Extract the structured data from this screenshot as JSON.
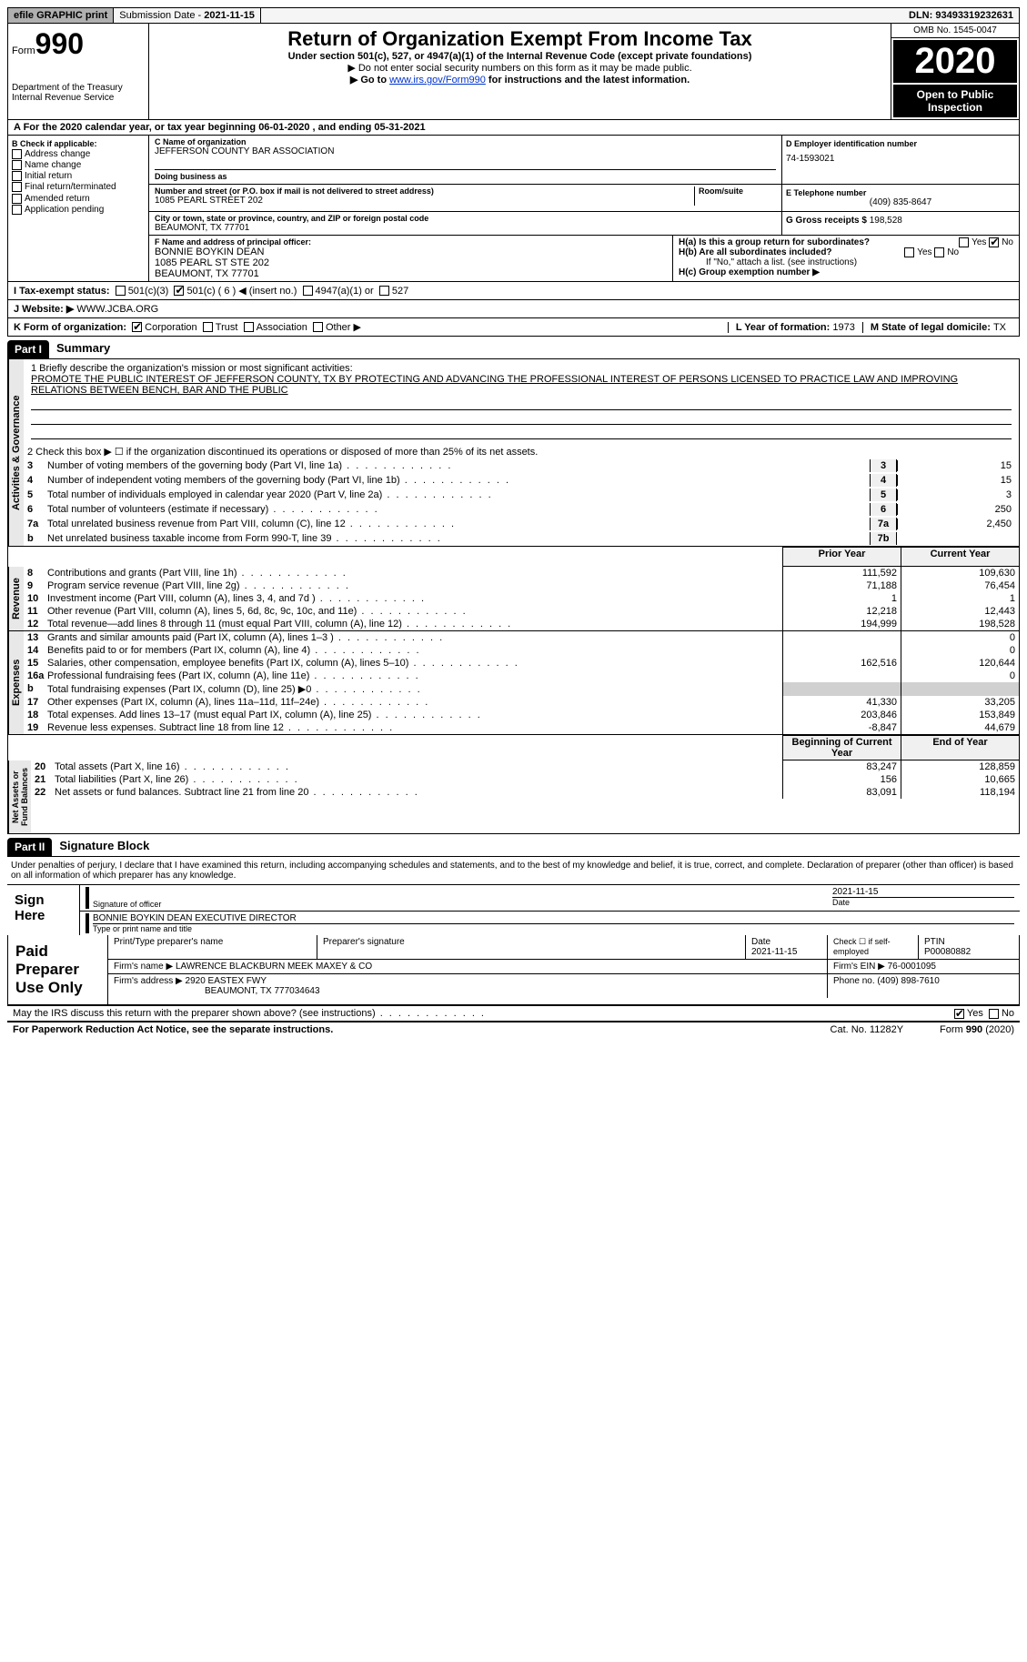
{
  "top_bar": {
    "efile": "efile GRAPHIC print",
    "submission_label": "Submission Date - ",
    "submission_date": "2021-11-15",
    "dln_label": "DLN: ",
    "dln": "93493319232631"
  },
  "header": {
    "form_word": "Form",
    "form_num": "990",
    "dept": "Department of the Treasury\nInternal Revenue Service",
    "title": "Return of Organization Exempt From Income Tax",
    "subtitle": "Under section 501(c), 527, or 4947(a)(1) of the Internal Revenue Code (except private foundations)",
    "ssn_note": "▶ Do not enter social security numbers on this form as it may be made public.",
    "goto_prefix": "▶ Go to ",
    "goto_link": "www.irs.gov/Form990",
    "goto_suffix": " for instructions and the latest information.",
    "omb": "OMB No. 1545-0047",
    "year": "2020",
    "open_public": "Open to Public\nInspection"
  },
  "tax_year_row": "A For the 2020 calendar year, or tax year beginning 06-01-2020    , and ending 05-31-2021",
  "section_b": {
    "heading": "B Check if applicable:",
    "items": [
      "Address change",
      "Name change",
      "Initial return",
      "Final return/terminated",
      "Amended return",
      "Application pending"
    ]
  },
  "section_c": {
    "name_label": "C Name of organization",
    "name": "JEFFERSON COUNTY BAR ASSOCIATION",
    "dba_label": "Doing business as",
    "dba": "",
    "addr_label": "Number and street (or P.O. box if mail is not delivered to street address)",
    "room_label": "Room/suite",
    "addr": "1085 PEARL STREET 202",
    "city_label": "City or town, state or province, country, and ZIP or foreign postal code",
    "city": "BEAUMONT, TX  77701"
  },
  "section_d": {
    "label": "D Employer identification number",
    "value": "74-1593021"
  },
  "section_e": {
    "label": "E Telephone number",
    "value": "(409) 835-8647"
  },
  "section_g": {
    "label": "G Gross receipts $ ",
    "value": "198,528"
  },
  "section_f": {
    "label": "F  Name and address of principal officer:",
    "name": "BONNIE BOYKIN DEAN",
    "addr1": "1085 PEARL ST STE 202",
    "addr2": "BEAUMONT, TX  77701"
  },
  "section_h": {
    "ha": "H(a)  Is this a group return for subordinates?",
    "ha_yes": false,
    "ha_no": true,
    "hb": "H(b)  Are all subordinates included?",
    "hb_yes": false,
    "hb_no": false,
    "hb_note": "If \"No,\" attach a list. (see instructions)",
    "hc": "H(c)  Group exemption number ▶"
  },
  "section_i": {
    "label": "I    Tax-exempt status:",
    "opt1": "501(c)(3)",
    "opt2": "501(c) ( 6 ) ◀ (insert no.)",
    "opt2_checked": true,
    "opt3": "4947(a)(1) or",
    "opt4": "527"
  },
  "section_j": {
    "label": "J   Website: ▶ ",
    "value": "WWW.JCBA.ORG"
  },
  "section_k": {
    "label": "K Form of organization:",
    "corp": "Corporation",
    "corp_checked": true,
    "trust": "Trust",
    "assoc": "Association",
    "other": "Other ▶"
  },
  "section_l": {
    "label": "L Year of formation: ",
    "value": "1973"
  },
  "section_m": {
    "label": "M State of legal domicile: ",
    "value": "TX"
  },
  "part1": {
    "header": "Part I",
    "title": "Summary",
    "line1_label": "1   Briefly describe the organization's mission or most significant activities:",
    "mission": "PROMOTE THE PUBLIC INTEREST OF JEFFERSON COUNTY, TX BY PROTECTING AND ADVANCING THE PROFESSIONAL INTEREST OF PERSONS LICENSED TO PRACTICE LAW AND IMPROVING RELATIONS BETWEEN BENCH, BAR AND THE PUBLIC",
    "line2": "2   Check this box ▶ ☐  if the organization discontinued its operations or disposed of more than 25% of its net assets.",
    "governance_lines": [
      {
        "n": "3",
        "t": "Number of voting members of the governing body (Part VI, line 1a)",
        "b": "3",
        "v": "15"
      },
      {
        "n": "4",
        "t": "Number of independent voting members of the governing body (Part VI, line 1b)",
        "b": "4",
        "v": "15"
      },
      {
        "n": "5",
        "t": "Total number of individuals employed in calendar year 2020 (Part V, line 2a)",
        "b": "5",
        "v": "3"
      },
      {
        "n": "6",
        "t": "Total number of volunteers (estimate if necessary)",
        "b": "6",
        "v": "250"
      },
      {
        "n": "7a",
        "t": "Total unrelated business revenue from Part VIII, column (C), line 12",
        "b": "7a",
        "v": "2,450"
      },
      {
        "n": "b",
        "t": "Net unrelated business taxable income from Form 990-T, line 39",
        "b": "7b",
        "v": ""
      }
    ],
    "col_prior": "Prior Year",
    "col_current": "Current Year",
    "revenue_lines": [
      {
        "n": "8",
        "t": "Contributions and grants (Part VIII, line 1h)",
        "p": "111,592",
        "c": "109,630"
      },
      {
        "n": "9",
        "t": "Program service revenue (Part VIII, line 2g)",
        "p": "71,188",
        "c": "76,454"
      },
      {
        "n": "10",
        "t": "Investment income (Part VIII, column (A), lines 3, 4, and 7d )",
        "p": "1",
        "c": "1"
      },
      {
        "n": "11",
        "t": "Other revenue (Part VIII, column (A), lines 5, 6d, 8c, 9c, 10c, and 11e)",
        "p": "12,218",
        "c": "12,443"
      },
      {
        "n": "12",
        "t": "Total revenue—add lines 8 through 11 (must equal Part VIII, column (A), line 12)",
        "p": "194,999",
        "c": "198,528"
      }
    ],
    "expense_lines": [
      {
        "n": "13",
        "t": "Grants and similar amounts paid (Part IX, column (A), lines 1–3 )",
        "p": "",
        "c": "0"
      },
      {
        "n": "14",
        "t": "Benefits paid to or for members (Part IX, column (A), line 4)",
        "p": "",
        "c": "0"
      },
      {
        "n": "15",
        "t": "Salaries, other compensation, employee benefits (Part IX, column (A), lines 5–10)",
        "p": "162,516",
        "c": "120,644"
      },
      {
        "n": "16a",
        "t": "Professional fundraising fees (Part IX, column (A), line 11e)",
        "p": "",
        "c": "0"
      },
      {
        "n": "b",
        "t": "Total fundraising expenses (Part IX, column (D), line 25) ▶0",
        "p": "shaded",
        "c": "shaded"
      },
      {
        "n": "17",
        "t": "Other expenses (Part IX, column (A), lines 11a–11d, 11f–24e)",
        "p": "41,330",
        "c": "33,205"
      },
      {
        "n": "18",
        "t": "Total expenses. Add lines 13–17 (must equal Part IX, column (A), line 25)",
        "p": "203,846",
        "c": "153,849"
      },
      {
        "n": "19",
        "t": "Revenue less expenses. Subtract line 18 from line 12",
        "p": "-8,847",
        "c": "44,679"
      }
    ],
    "col_begin": "Beginning of Current Year",
    "col_end": "End of Year",
    "netassets_lines": [
      {
        "n": "20",
        "t": "Total assets (Part X, line 16)",
        "p": "83,247",
        "c": "128,859"
      },
      {
        "n": "21",
        "t": "Total liabilities (Part X, line 26)",
        "p": "156",
        "c": "10,665"
      },
      {
        "n": "22",
        "t": "Net assets or fund balances. Subtract line 21 from line 20",
        "p": "83,091",
        "c": "118,194"
      }
    ],
    "vert_gov": "Activities & Governance",
    "vert_rev": "Revenue",
    "vert_exp": "Expenses",
    "vert_net": "Net Assets or\nFund Balances"
  },
  "part2": {
    "header": "Part II",
    "title": "Signature Block",
    "declaration": "Under penalties of perjury, I declare that I have examined this return, including accompanying schedules and statements, and to the best of my knowledge and belief, it is true, correct, and complete. Declaration of preparer (other than officer) is based on all information of which preparer has any knowledge.",
    "sign_here": "Sign Here",
    "sig_of_officer": "Signature of officer",
    "sig_date": "2021-11-15",
    "date_label": "Date",
    "officer_name": "BONNIE BOYKIN DEAN  EXECUTIVE DIRECTOR",
    "type_name_label": "Type or print name and title",
    "paid_preparer": "Paid Preparer Use Only",
    "prep_name_label": "Print/Type preparer's name",
    "prep_sig_label": "Preparer's signature",
    "prep_date_label": "Date",
    "prep_date": "2021-11-15",
    "check_self": "Check ☐ if self-employed",
    "ptin_label": "PTIN",
    "ptin": "P00080882",
    "firm_name_label": "Firm's name    ▶ ",
    "firm_name": "LAWRENCE BLACKBURN MEEK MAXEY & CO",
    "firm_ein_label": "Firm's EIN ▶ ",
    "firm_ein": "76-0001095",
    "firm_addr_label": "Firm's address ▶ ",
    "firm_addr": "2920 EASTEX FWY",
    "firm_addr2": "BEAUMONT, TX   777034643",
    "phone_label": "Phone no. ",
    "phone": "(409) 898-7610",
    "may_irs": "May the IRS discuss this return with the preparer shown above? (see instructions)",
    "may_yes": true,
    "may_no": false
  },
  "footer": {
    "left": "For Paperwork Reduction Act Notice, see the separate instructions.",
    "cat": "Cat. No. 11282Y",
    "right": "Form 990 (2020)"
  }
}
